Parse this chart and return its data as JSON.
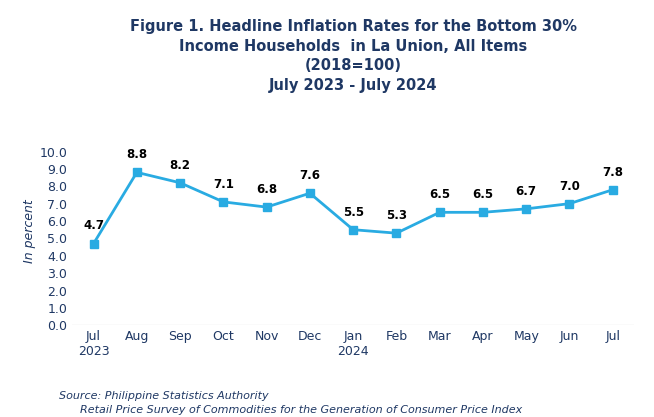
{
  "title_line1": "Figure 1. Headline Inflation Rates for the Bottom 30%",
  "title_line2": "Income Households  in La Union, All Items",
  "title_line3": "(2018=100)",
  "title_line4": "July 2023 - July 2024",
  "x_labels": [
    "Jul\n2023",
    "Aug",
    "Sep",
    "Oct",
    "Nov",
    "Dec",
    "Jan\n2024",
    "Feb",
    "Mar",
    "Apr",
    "May",
    "Jun",
    "Jul"
  ],
  "values": [
    4.7,
    8.8,
    8.2,
    7.1,
    6.8,
    7.6,
    5.5,
    5.3,
    6.5,
    6.5,
    6.7,
    7.0,
    7.8
  ],
  "line_color": "#29ABE2",
  "marker_color": "#29ABE2",
  "marker_style": "s",
  "marker_size": 6,
  "line_width": 2.0,
  "ylabel": "In percent",
  "ylim": [
    0.0,
    10.8
  ],
  "yticks": [
    0.0,
    1.0,
    2.0,
    3.0,
    4.0,
    5.0,
    6.0,
    7.0,
    8.0,
    9.0,
    10.0
  ],
  "ytick_labels": [
    "0.0",
    "1.0",
    "2.0",
    "3.0",
    "4.0",
    "5.0",
    "6.0",
    "7.0",
    "8.0",
    "9.0",
    "10.0"
  ],
  "source_line1": "Source: Philippine Statistics Authority",
  "source_line2": "      Retail Price Survey of Commodities for the Generation of Consumer Price Index",
  "bg_color": "#FFFFFF",
  "title_fontsize": 10.5,
  "tick_fontsize": 9,
  "annotation_fontsize": 8.5,
  "source_fontsize": 8,
  "ylabel_fontsize": 9
}
